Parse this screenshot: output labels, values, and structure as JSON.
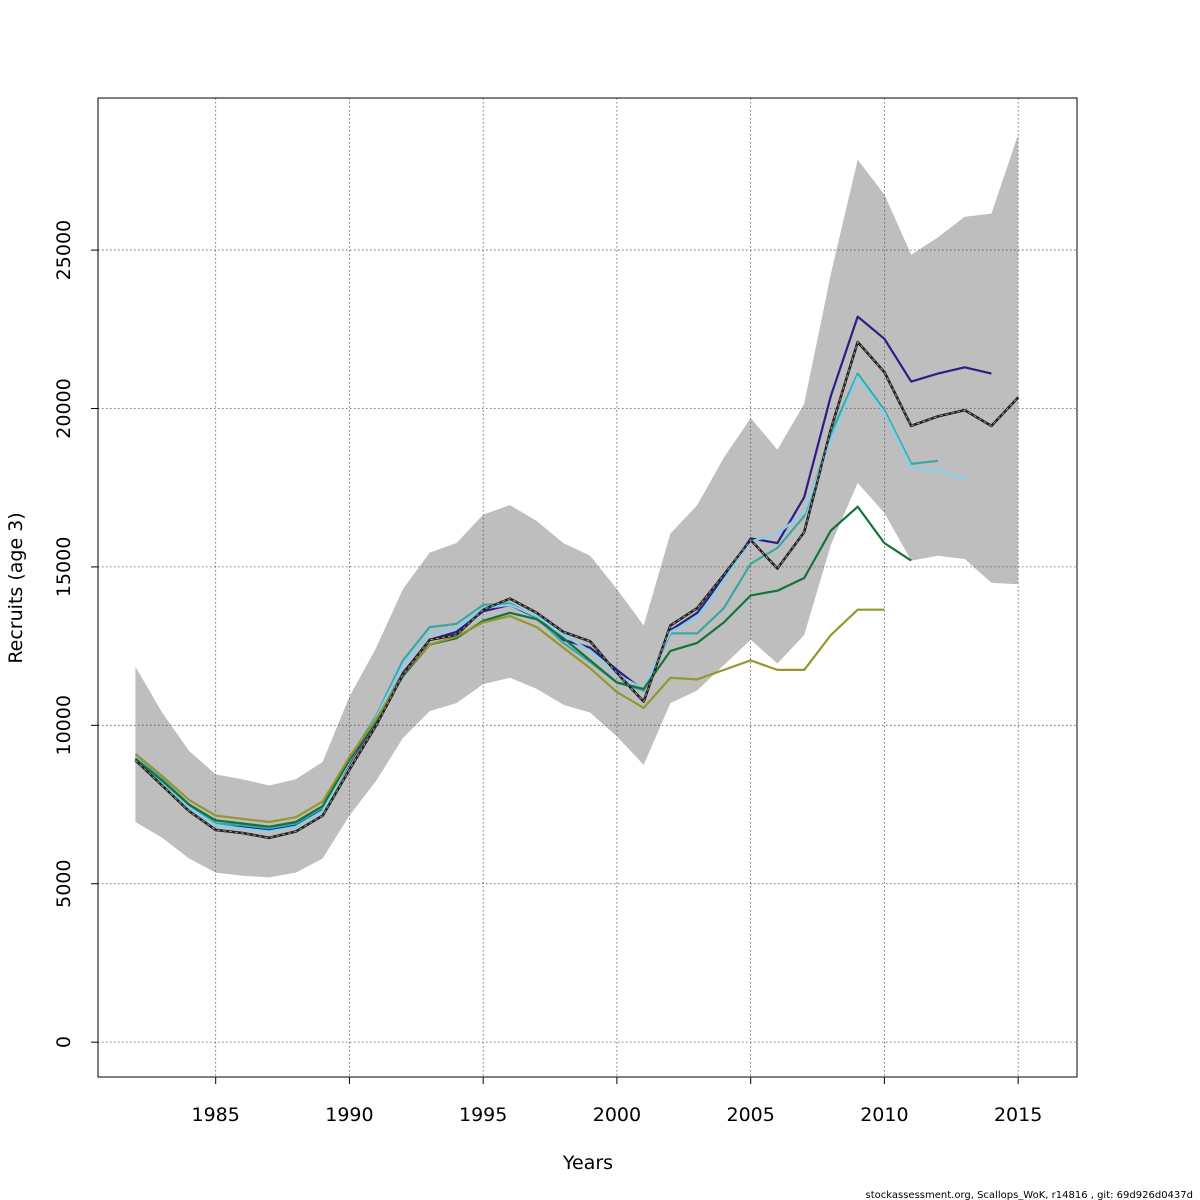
{
  "chart_data": {
    "type": "line",
    "xlabel": "Years",
    "ylabel": "Recruits (age 3)",
    "xlim": [
      1980.6,
      2017.2
    ],
    "ylim": [
      -1100,
      29800
    ],
    "x_ticks": [
      1985,
      1990,
      1995,
      2000,
      2005,
      2010,
      2015
    ],
    "y_ticks": [
      0,
      5000,
      10000,
      15000,
      20000,
      25000
    ],
    "grid": true,
    "footer": "stockassessment.org, Scallops_WoK, r14816 , git: 69d926d0437d",
    "confidence_band": {
      "x": [
        1982,
        1983,
        1984,
        1985,
        1986,
        1987,
        1988,
        1989,
        1990,
        1991,
        1992,
        1993,
        1994,
        1995,
        1996,
        1997,
        1998,
        1999,
        2000,
        2001,
        2002,
        2003,
        2004,
        2005,
        2006,
        2007,
        2008,
        2009,
        2010,
        2011,
        2012,
        2013,
        2014,
        2015
      ],
      "upper": [
        11850,
        10400,
        9200,
        8450,
        8300,
        8100,
        8300,
        8850,
        10900,
        12450,
        14300,
        15450,
        15750,
        16650,
        16950,
        16450,
        15750,
        15350,
        14300,
        13150,
        16050,
        16950,
        18450,
        19700,
        18700,
        20150,
        24250,
        27850,
        26750,
        24850,
        25400,
        26050,
        26150,
        28650
      ],
      "lower": [
        6950,
        6450,
        5800,
        5350,
        5250,
        5200,
        5350,
        5800,
        7150,
        8250,
        9600,
        10450,
        10700,
        11300,
        11500,
        11150,
        10650,
        10400,
        9650,
        8750,
        10700,
        11100,
        11900,
        12700,
        11950,
        12850,
        15700,
        17650,
        16700,
        15200,
        15350,
        15250,
        14500,
        14450
      ],
      "color": "#bebebe"
    },
    "series": [
      {
        "color": "#222222",
        "dashed": true,
        "x": [
          1982,
          1983,
          1984,
          1985,
          1986,
          1987,
          1988,
          1989,
          1990,
          1991,
          1992,
          1993,
          1994,
          1995,
          1996,
          1997,
          1998,
          1999,
          2000,
          2001,
          2002,
          2003,
          2004,
          2005,
          2006,
          2007,
          2008,
          2009,
          2010,
          2011,
          2012,
          2013,
          2014,
          2015
        ],
        "values": [
          8900,
          8100,
          7300,
          6700,
          6600,
          6450,
          6650,
          7150,
          8600,
          10000,
          11600,
          12700,
          12850,
          13650,
          14000,
          13550,
          12950,
          12650,
          11650,
          10750,
          13150,
          13700,
          14750,
          15850,
          14950,
          16100,
          19350,
          22100,
          21150,
          19450,
          19750,
          19950,
          19450,
          20350
        ]
      },
      {
        "color": "#2b1f86",
        "x": [
          1982,
          1983,
          1984,
          1985,
          1986,
          1987,
          1988,
          1989,
          1990,
          1991,
          1992,
          1993,
          1994,
          1995,
          1996,
          1997,
          1998,
          1999,
          2000,
          2001,
          2002,
          2003,
          2004,
          2005,
          2006,
          2007,
          2008,
          2009,
          2010,
          2011,
          2012,
          2013,
          2014
        ],
        "values": [
          9000,
          8300,
          7500,
          6900,
          6800,
          6700,
          6850,
          7350,
          8800,
          10150,
          11650,
          12700,
          12950,
          13600,
          13800,
          13400,
          12700,
          12450,
          11750,
          11100,
          13000,
          13550,
          14650,
          15900,
          15750,
          17200,
          20400,
          22900,
          22200,
          20850,
          21100,
          21300,
          21100
        ]
      },
      {
        "color": "#3aa8a0",
        "x": [
          1982,
          1983,
          1984,
          1985,
          1986,
          1987,
          1988,
          1989,
          1990,
          1991,
          1992,
          1993,
          1994,
          1995,
          1996,
          1997,
          1998,
          1999,
          2000,
          2001,
          2002,
          2003,
          2004,
          2005,
          2006,
          2007,
          2008,
          2009,
          2010,
          2011,
          2012
        ],
        "values": [
          9000,
          8300,
          7500,
          6900,
          6850,
          6750,
          6900,
          7400,
          8950,
          10300,
          12050,
          13100,
          13200,
          13800,
          13850,
          13400,
          12600,
          12000,
          11350,
          11100,
          12900,
          12900,
          13700,
          15100,
          15600,
          16600,
          19200,
          21100,
          19950,
          18250,
          18350
        ]
      },
      {
        "color": "#87ceeb",
        "x": [
          1982,
          1983,
          1984,
          1985,
          1986,
          1987,
          1988,
          1989,
          1990,
          1991,
          1992,
          1993,
          1994,
          1995,
          1996,
          1997,
          1998,
          1999,
          2000,
          2001,
          2002,
          2003,
          2004,
          2005,
          2006,
          2007,
          2008,
          2009,
          2010,
          2011,
          2012,
          2013
        ],
        "values": [
          9000,
          8200,
          7400,
          6850,
          6750,
          6650,
          6800,
          7300,
          8850,
          10250,
          11900,
          12900,
          13050,
          13700,
          13800,
          13450,
          12850,
          12350,
          11600,
          11150,
          12950,
          13400,
          14600,
          15800,
          16050,
          16700,
          19000,
          21000,
          19850,
          18150,
          18050,
          17750
        ]
      },
      {
        "color": "#12743a",
        "x": [
          1982,
          1983,
          1984,
          1985,
          1986,
          1987,
          1988,
          1989,
          1990,
          1991,
          1992,
          1993,
          1994,
          1995,
          1996,
          1997,
          1998,
          1999,
          2000,
          2001,
          2002,
          2003,
          2004,
          2005,
          2006,
          2007,
          2008,
          2009,
          2010,
          2011
        ],
        "values": [
          8950,
          8250,
          7500,
          7000,
          6900,
          6800,
          6950,
          7450,
          8900,
          10150,
          11550,
          12550,
          12750,
          13300,
          13550,
          13350,
          12750,
          12050,
          11350,
          11150,
          12350,
          12600,
          13250,
          14100,
          14250,
          14650,
          16150,
          16900,
          15750,
          15200
        ]
      },
      {
        "color": "#94962e",
        "x": [
          1982,
          1983,
          1984,
          1985,
          1986,
          1987,
          1988,
          1989,
          1990,
          1991,
          1992,
          1993,
          1994,
          1995,
          1996,
          1997,
          1998,
          1999,
          2000,
          2001,
          2002,
          2003,
          2004,
          2005,
          2006,
          2007,
          2008,
          2009,
          2010
        ],
        "values": [
          9100,
          8400,
          7650,
          7150,
          7050,
          6950,
          7100,
          7600,
          9000,
          10200,
          11600,
          12550,
          12800,
          13250,
          13450,
          13100,
          12450,
          11800,
          11050,
          10550,
          11500,
          11450,
          11750,
          12050,
          11750,
          11750,
          12850,
          13650,
          13650
        ]
      }
    ]
  }
}
